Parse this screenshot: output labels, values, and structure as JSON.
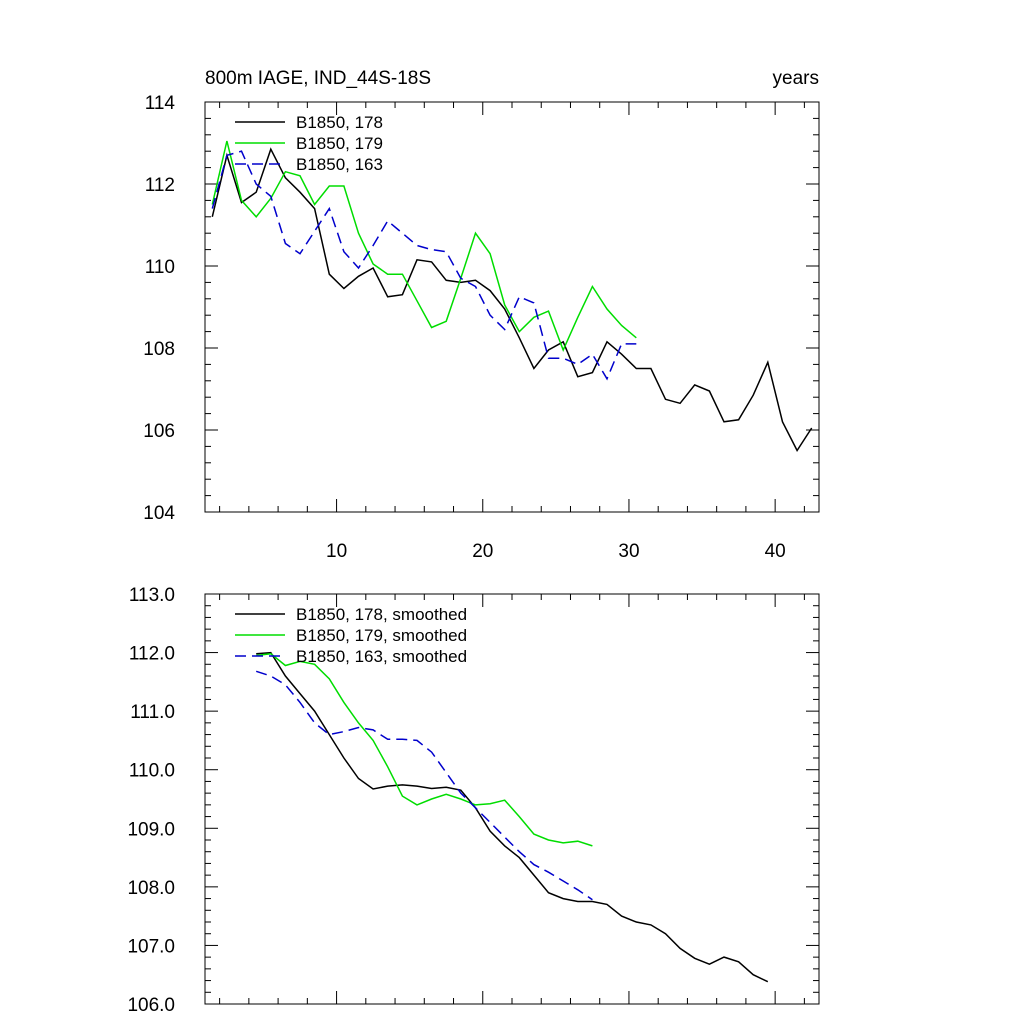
{
  "chart_data": [
    {
      "type": "line",
      "title_left": "800m IAGE, IND_44S-18S",
      "title_right": "years",
      "xlim": [
        1,
        43
      ],
      "ylim": [
        104,
        114
      ],
      "x_ticks": [
        10,
        20,
        30,
        40
      ],
      "x_tick_labels": [
        "10",
        "20",
        "30",
        "40"
      ],
      "y_ticks": [
        104,
        106,
        108,
        110,
        112,
        114
      ],
      "y_tick_labels": [
        "104",
        "106",
        "108",
        "110",
        "112",
        "114"
      ],
      "grid": false,
      "legend_position": "top-left",
      "series": [
        {
          "name": "B1850, 178",
          "color": "#000000",
          "dash": "solid",
          "x": [
            1.5,
            2.5,
            3.5,
            4.5,
            5.5,
            6.5,
            7.5,
            8.5,
            9.5,
            10.5,
            11.5,
            12.5,
            13.5,
            14.5,
            15.5,
            16.5,
            17.5,
            18.5,
            19.5,
            20.5,
            21.5,
            22.5,
            23.5,
            24.5,
            25.5,
            26.5,
            27.5,
            28.5,
            29.5,
            30.5,
            31.5,
            32.5,
            33.5,
            34.5,
            35.5,
            36.5,
            37.5,
            38.5,
            39.5,
            40.5,
            41.5,
            42.5
          ],
          "y": [
            111.2,
            112.7,
            111.55,
            111.8,
            112.85,
            112.15,
            111.8,
            111.4,
            109.8,
            109.45,
            109.75,
            109.95,
            109.25,
            109.3,
            110.15,
            110.1,
            109.65,
            109.6,
            109.65,
            109.4,
            108.95,
            108.25,
            107.5,
            107.95,
            108.15,
            107.3,
            107.4,
            108.15,
            107.85,
            107.5,
            107.5,
            106.75,
            106.65,
            107.1,
            106.95,
            106.2,
            106.25,
            106.85,
            107.65,
            106.2,
            105.5,
            106.05
          ]
        },
        {
          "name": "B1850, 179",
          "color": "#00dd00",
          "dash": "solid",
          "x": [
            1.5,
            2.5,
            3.5,
            4.5,
            5.5,
            6.5,
            7.5,
            8.5,
            9.5,
            10.5,
            11.5,
            12.5,
            13.5,
            14.5,
            15.5,
            16.5,
            17.5,
            18.5,
            19.5,
            20.5,
            21.5,
            22.5,
            23.5,
            24.5,
            25.5,
            26.5,
            27.5,
            28.5,
            29.5,
            30.5
          ],
          "y": [
            111.5,
            113.05,
            111.6,
            111.2,
            111.65,
            112.3,
            112.2,
            111.5,
            111.95,
            111.95,
            110.8,
            110.05,
            109.8,
            109.8,
            109.15,
            108.5,
            108.65,
            109.7,
            110.8,
            110.3,
            109.05,
            108.4,
            108.75,
            108.9,
            107.95,
            108.75,
            109.5,
            108.95,
            108.55,
            108.25
          ]
        },
        {
          "name": "B1850, 163",
          "color": "#0000cc",
          "dash": "dashed",
          "x": [
            1.5,
            2.5,
            3.5,
            4.5,
            5.5,
            6.5,
            7.5,
            8.5,
            9.5,
            10.5,
            11.5,
            12.5,
            13.5,
            14.5,
            15.5,
            16.5,
            17.5,
            18.5,
            19.5,
            20.5,
            21.5,
            22.5,
            23.5,
            24.5,
            25.5,
            26.5,
            27.5,
            28.5,
            29.5,
            30.5
          ],
          "y": [
            111.4,
            112.7,
            112.8,
            112.0,
            111.7,
            110.55,
            110.3,
            110.85,
            111.4,
            110.35,
            109.95,
            110.5,
            111.1,
            110.8,
            110.5,
            110.4,
            110.35,
            109.7,
            109.5,
            108.8,
            108.45,
            109.25,
            109.1,
            107.75,
            107.75,
            107.6,
            107.85,
            107.25,
            108.1,
            108.1
          ]
        }
      ]
    },
    {
      "type": "line",
      "xlim": [
        1,
        43
      ],
      "ylim": [
        106,
        113
      ],
      "x_ticks": [
        10,
        20,
        30,
        40
      ],
      "y_ticks": [
        106,
        107,
        108,
        109,
        110,
        111,
        112,
        113
      ],
      "y_tick_labels": [
        "106.0",
        "107.0",
        "108.0",
        "109.0",
        "110.0",
        "111.0",
        "112.0",
        "113.0"
      ],
      "grid": false,
      "legend_position": "top-left",
      "series": [
        {
          "name": "B1850, 178, smoothed",
          "color": "#000000",
          "dash": "solid",
          "x": [
            4.5,
            5.5,
            6.5,
            7.5,
            8.5,
            9.5,
            10.5,
            11.5,
            12.5,
            13.5,
            14.5,
            15.5,
            16.5,
            17.5,
            18.5,
            19.5,
            20.5,
            21.5,
            22.5,
            23.5,
            24.5,
            25.5,
            26.5,
            27.5,
            28.5,
            29.5,
            30.5,
            31.5,
            32.5,
            33.5,
            34.5,
            35.5,
            36.5,
            37.5,
            38.5,
            39.5
          ],
          "y": [
            111.98,
            112.0,
            111.6,
            111.3,
            111.0,
            110.6,
            110.2,
            109.85,
            109.67,
            109.72,
            109.74,
            109.72,
            109.68,
            109.7,
            109.65,
            109.35,
            108.95,
            108.7,
            108.5,
            108.2,
            107.9,
            107.8,
            107.75,
            107.75,
            107.7,
            107.5,
            107.4,
            107.35,
            107.2,
            106.95,
            106.78,
            106.68,
            106.8,
            106.72,
            106.5,
            106.38
          ]
        },
        {
          "name": "B1850, 179, smoothed",
          "color": "#00dd00",
          "dash": "solid",
          "x": [
            4.5,
            5.5,
            6.5,
            7.5,
            8.5,
            9.5,
            10.5,
            11.5,
            12.5,
            13.5,
            14.5,
            15.5,
            16.5,
            17.5,
            18.5,
            19.5,
            20.5,
            21.5,
            22.5,
            23.5,
            24.5,
            25.5,
            26.5,
            27.5
          ],
          "y": [
            111.95,
            111.98,
            111.78,
            111.85,
            111.8,
            111.55,
            111.15,
            110.8,
            110.5,
            110.05,
            109.55,
            109.4,
            109.5,
            109.58,
            109.5,
            109.4,
            109.42,
            109.48,
            109.2,
            108.9,
            108.8,
            108.75,
            108.78,
            108.7
          ]
        },
        {
          "name": "B1850, 163, smoothed",
          "color": "#0000cc",
          "dash": "dashed",
          "x": [
            4.5,
            5.5,
            6.5,
            7.5,
            8.5,
            9.5,
            10.5,
            11.5,
            12.5,
            13.5,
            14.5,
            15.5,
            16.5,
            17.5,
            18.5,
            19.5,
            20.5,
            21.5,
            22.5,
            23.5,
            24.5,
            25.5,
            26.5,
            27.5
          ],
          "y": [
            111.68,
            111.6,
            111.45,
            111.15,
            110.8,
            110.6,
            110.65,
            110.72,
            110.68,
            110.52,
            110.52,
            110.5,
            110.3,
            109.95,
            109.6,
            109.35,
            109.1,
            108.85,
            108.6,
            108.38,
            108.25,
            108.1,
            107.95,
            107.78
          ]
        }
      ]
    }
  ]
}
